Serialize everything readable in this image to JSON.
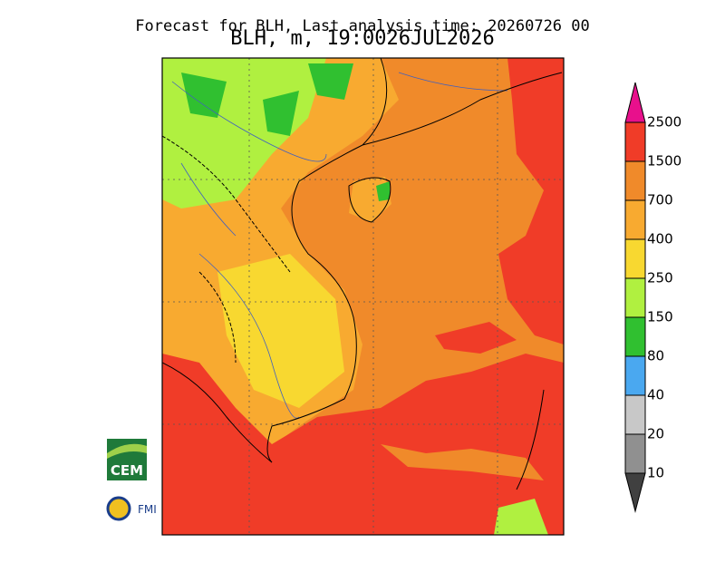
{
  "header": {
    "title": "Forecast for BLH, Last analysis time: 20260726 00",
    "subtitle": "BLH, m, 19:0026JUL2026"
  },
  "colorbar": {
    "labels": [
      "2500",
      "1500",
      "700",
      "400",
      "250",
      "150",
      "80",
      "40",
      "20",
      "10"
    ],
    "colors": [
      "#f03c28",
      "#f08a2a",
      "#f8aa30",
      "#f8d830",
      "#b0f040",
      "#30c030",
      "#4aa8f0",
      "#c8c8c8",
      "#909090"
    ],
    "over_color": "#e8108c",
    "under_color": "#404040"
  },
  "logos": {
    "cem": "CEM",
    "fmi": "FMI"
  }
}
